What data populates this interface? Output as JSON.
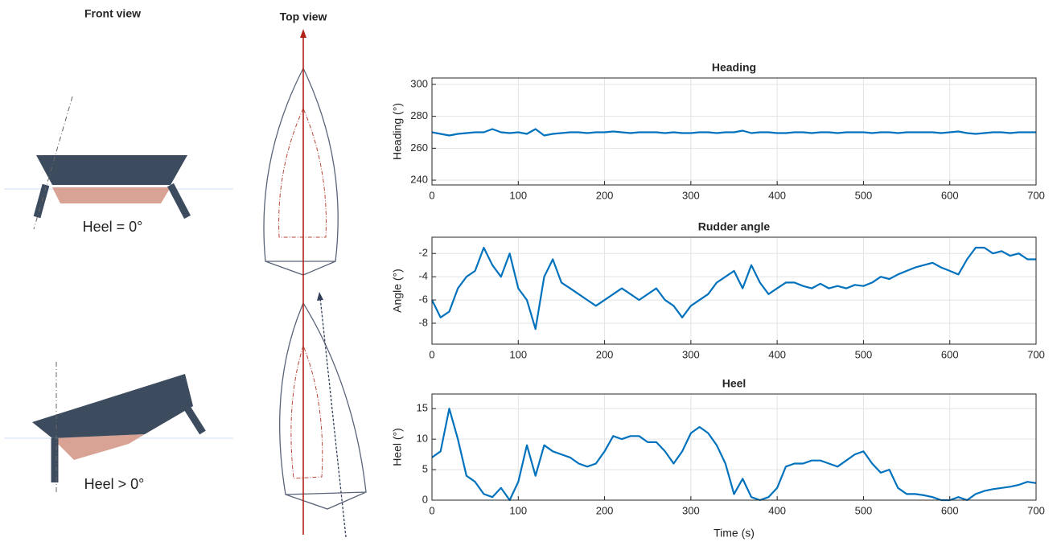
{
  "diagram": {
    "front_title": "Front view",
    "top_title": "Top view",
    "heel_zero": "Heel = 0°",
    "heel_pos": "Heel > 0°"
  },
  "chart_data": [
    {
      "type": "line",
      "title": "Heading",
      "y_label": "Heading (°)",
      "x": [
        0,
        10,
        20,
        30,
        40,
        50,
        60,
        70,
        80,
        90,
        100,
        110,
        120,
        130,
        140,
        150,
        160,
        170,
        180,
        190,
        200,
        210,
        220,
        230,
        240,
        250,
        260,
        270,
        280,
        290,
        300,
        310,
        320,
        330,
        340,
        350,
        360,
        370,
        380,
        390,
        400,
        410,
        420,
        430,
        440,
        450,
        460,
        470,
        480,
        490,
        500,
        510,
        520,
        530,
        540,
        550,
        560,
        570,
        580,
        590,
        600,
        610,
        620,
        630,
        640,
        650,
        660,
        670,
        680,
        690,
        700
      ],
      "values": [
        270,
        269,
        268,
        269,
        269.5,
        270,
        270,
        272,
        270,
        269.5,
        270,
        269,
        272,
        268,
        269,
        269.5,
        270,
        270,
        269.5,
        270,
        270,
        270.5,
        270,
        269.5,
        270,
        270,
        270,
        269.5,
        270,
        269.5,
        269.5,
        270,
        270,
        269.5,
        270,
        270,
        271,
        269.5,
        270,
        270,
        269.5,
        269.5,
        270,
        270,
        269.5,
        270,
        270,
        269.5,
        270,
        270,
        270,
        269.5,
        270,
        270,
        269.5,
        270,
        270,
        270,
        270,
        269.5,
        270,
        270.5,
        269.5,
        269,
        269.5,
        270,
        270,
        269.5,
        270,
        270,
        270
      ],
      "color": "#0072bd",
      "xlim": [
        0,
        700
      ],
      "xticks": [
        0,
        100,
        200,
        300,
        400,
        500,
        600,
        700
      ],
      "ylim": [
        237,
        304
      ],
      "yticks": [
        240,
        260,
        280,
        300
      ],
      "grid": true
    },
    {
      "type": "line",
      "title": "Rudder angle",
      "y_label": "Angle (°)",
      "x": [
        0,
        10,
        20,
        30,
        40,
        50,
        60,
        70,
        80,
        90,
        100,
        110,
        120,
        130,
        140,
        150,
        160,
        170,
        180,
        190,
        200,
        210,
        220,
        230,
        240,
        250,
        260,
        270,
        280,
        290,
        300,
        310,
        320,
        330,
        340,
        350,
        360,
        370,
        380,
        390,
        400,
        410,
        420,
        430,
        440,
        450,
        460,
        470,
        480,
        490,
        500,
        510,
        520,
        530,
        540,
        550,
        560,
        570,
        580,
        590,
        600,
        610,
        620,
        630,
        640,
        650,
        660,
        670,
        680,
        690,
        700
      ],
      "values": [
        -6,
        -7.5,
        -7,
        -5,
        -4,
        -3.5,
        -1.5,
        -3,
        -4,
        -2,
        -5,
        -6,
        -8.5,
        -4,
        -2.5,
        -4.5,
        -5,
        -5.5,
        -6,
        -6.5,
        -6,
        -5.5,
        -5,
        -5.5,
        -6,
        -5.5,
        -5,
        -6,
        -6.5,
        -7.5,
        -6.5,
        -6,
        -5.5,
        -4.5,
        -4,
        -3.5,
        -5,
        -3,
        -4.5,
        -5.5,
        -5,
        -4.5,
        -4.5,
        -4.8,
        -5,
        -4.6,
        -5,
        -4.8,
        -5,
        -4.7,
        -4.8,
        -4.5,
        -4,
        -4.2,
        -3.8,
        -3.5,
        -3.2,
        -3,
        -2.8,
        -3.2,
        -3.5,
        -3.8,
        -2.5,
        -1.5,
        -1.5,
        -2,
        -1.8,
        -2.2,
        -2,
        -2.5,
        -2.5
      ],
      "color": "#0072bd",
      "xlim": [
        0,
        700
      ],
      "xticks": [
        0,
        100,
        200,
        300,
        400,
        500,
        600,
        700
      ],
      "ylim": [
        -9.8,
        -0.6
      ],
      "yticks": [
        -8,
        -6,
        -4,
        -2
      ],
      "grid": true
    },
    {
      "type": "line",
      "title": "Heel",
      "y_label": "Heel (°)",
      "x_label": "Time (s)",
      "x": [
        0,
        10,
        20,
        30,
        40,
        50,
        60,
        70,
        80,
        90,
        100,
        110,
        120,
        130,
        140,
        150,
        160,
        170,
        180,
        190,
        200,
        210,
        220,
        230,
        240,
        250,
        260,
        270,
        280,
        290,
        300,
        310,
        320,
        330,
        340,
        350,
        360,
        370,
        380,
        390,
        400,
        410,
        420,
        430,
        440,
        450,
        460,
        470,
        480,
        490,
        500,
        510,
        520,
        530,
        540,
        550,
        560,
        570,
        580,
        590,
        600,
        610,
        620,
        630,
        640,
        650,
        660,
        670,
        680,
        690,
        700
      ],
      "values": [
        7,
        8,
        15,
        10,
        4,
        3,
        1,
        0.5,
        2,
        0,
        3,
        9,
        4,
        9,
        8,
        7.5,
        7,
        6,
        5.5,
        6,
        8,
        10.5,
        10,
        10.5,
        10.5,
        9.5,
        9.5,
        8,
        6,
        8,
        11,
        12,
        11,
        9,
        6,
        1,
        3.5,
        0.5,
        0,
        0.5,
        2,
        5.5,
        6,
        6,
        6.5,
        6.5,
        6,
        5.5,
        6.5,
        7.5,
        8,
        6,
        4.5,
        5,
        2,
        1,
        1,
        0.8,
        0.5,
        0,
        0,
        0.5,
        0,
        1,
        1.5,
        1.8,
        2,
        2.2,
        2.5,
        3,
        2.8
      ],
      "color": "#0072bd",
      "xlim": [
        0,
        700
      ],
      "xticks": [
        0,
        100,
        200,
        300,
        400,
        500,
        600,
        700
      ],
      "ylim": [
        0,
        17.4
      ],
      "yticks": [
        0,
        5,
        10,
        15
      ],
      "grid": true
    }
  ]
}
